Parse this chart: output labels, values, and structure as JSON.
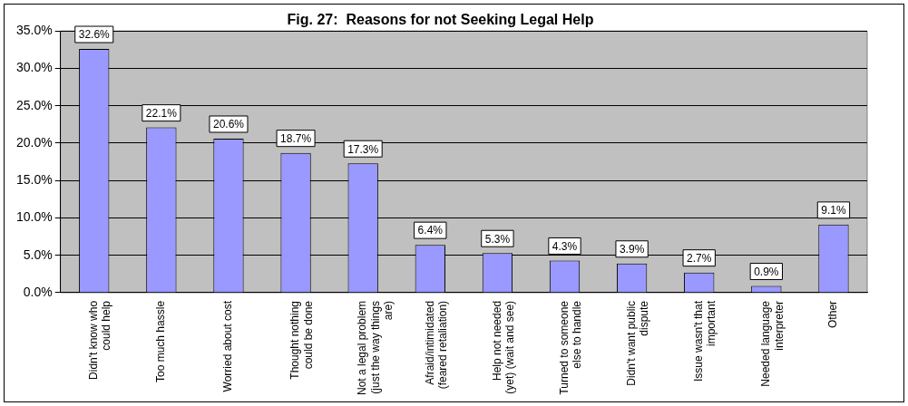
{
  "chart_data": {
    "type": "bar",
    "title": "Fig. 27:  Reasons for not Seeking Legal Help",
    "categories": [
      "Didn't know who could help",
      "Too much hassle",
      "Worried about cost",
      "Thought nothing could be done",
      "Not a legal problem (just the way things are)",
      "Afraid/intimidated (feared retaliation)",
      "Help not needed (yet) (wait and see)",
      "Turned to someone else to handle",
      "Didn't want public dispute",
      "Issue wasn't that important",
      "Needed language interpreter",
      "Other"
    ],
    "values": [
      32.6,
      22.1,
      20.6,
      18.7,
      17.3,
      6.4,
      5.3,
      4.3,
      3.9,
      2.7,
      0.9,
      9.1
    ],
    "value_labels": [
      "32.6%",
      "22.1%",
      "20.6%",
      "18.7%",
      "17.3%",
      "6.4%",
      "5.3%",
      "4.3%",
      "3.9%",
      "2.7%",
      "0.9%",
      "9.1%"
    ],
    "color": "#9999ff",
    "ylim": [
      0,
      35
    ],
    "yticks": [
      {
        "value": 0,
        "label": "0.0%"
      },
      {
        "value": 5,
        "label": "5.0%"
      },
      {
        "value": 10,
        "label": "10.0%"
      },
      {
        "value": 15,
        "label": "15.0%"
      },
      {
        "value": 20,
        "label": "20.0%"
      },
      {
        "value": 25,
        "label": "25.0%"
      },
      {
        "value": 30,
        "label": "30.0%"
      },
      {
        "value": 35,
        "label": "35.0%"
      }
    ],
    "grid": "y",
    "legend": false
  }
}
